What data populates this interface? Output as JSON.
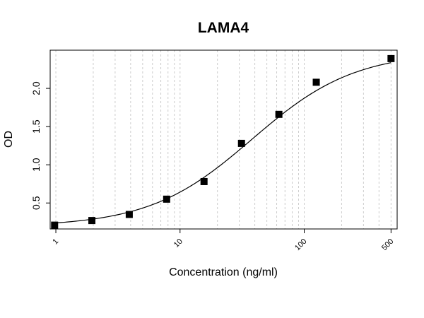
{
  "chart_data": {
    "type": "scatter",
    "title": "LAMA4",
    "xlabel": "Concentration (ng/ml)",
    "ylabel": "OD",
    "x_scale": "log",
    "xlim": [
      0.9,
      560
    ],
    "ylim": [
      0.16,
      2.5
    ],
    "x_ticks": [
      1,
      10,
      100,
      500
    ],
    "x_tick_labels": [
      "1",
      "10",
      "100",
      "500"
    ],
    "y_ticks": [
      0.5,
      1.0,
      1.5,
      2.0
    ],
    "y_tick_labels": [
      "0.5",
      "1.0",
      "1.5",
      "2.0"
    ],
    "grid": true,
    "legend": "none",
    "series": [
      {
        "x": [
          0.977,
          1.95,
          3.9,
          7.8,
          15.6,
          31.25,
          62.5,
          125,
          500
        ],
        "y": [
          0.21,
          0.27,
          0.35,
          0.55,
          0.78,
          1.28,
          1.66,
          2.08,
          2.39
        ]
      }
    ],
    "fit_curve": {
      "model": "4PL",
      "bottom": 0.19,
      "top": 2.48,
      "ec50": 38,
      "hill": 1.05
    }
  }
}
